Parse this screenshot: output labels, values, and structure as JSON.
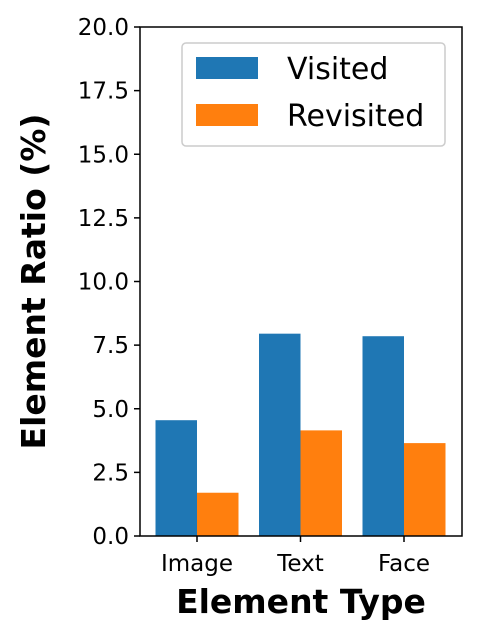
{
  "chart_data": {
    "type": "bar",
    "title": "",
    "xlabel": "Element Type",
    "ylabel": "Element Ratio (%)",
    "categories": [
      "Image",
      "Text",
      "Face"
    ],
    "series": [
      {
        "name": "Visited",
        "color": "#1f77b4",
        "values": [
          4.55,
          7.95,
          7.85
        ]
      },
      {
        "name": "Revisited",
        "color": "#ff7f0e",
        "values": [
          1.7,
          4.15,
          3.65
        ]
      }
    ],
    "ylim": [
      0,
      20
    ],
    "yticks": [
      "0.0",
      "2.5",
      "5.0",
      "7.5",
      "10.0",
      "12.5",
      "15.0",
      "17.5",
      "20.0"
    ],
    "grid": false,
    "legend_position": "top-right"
  }
}
